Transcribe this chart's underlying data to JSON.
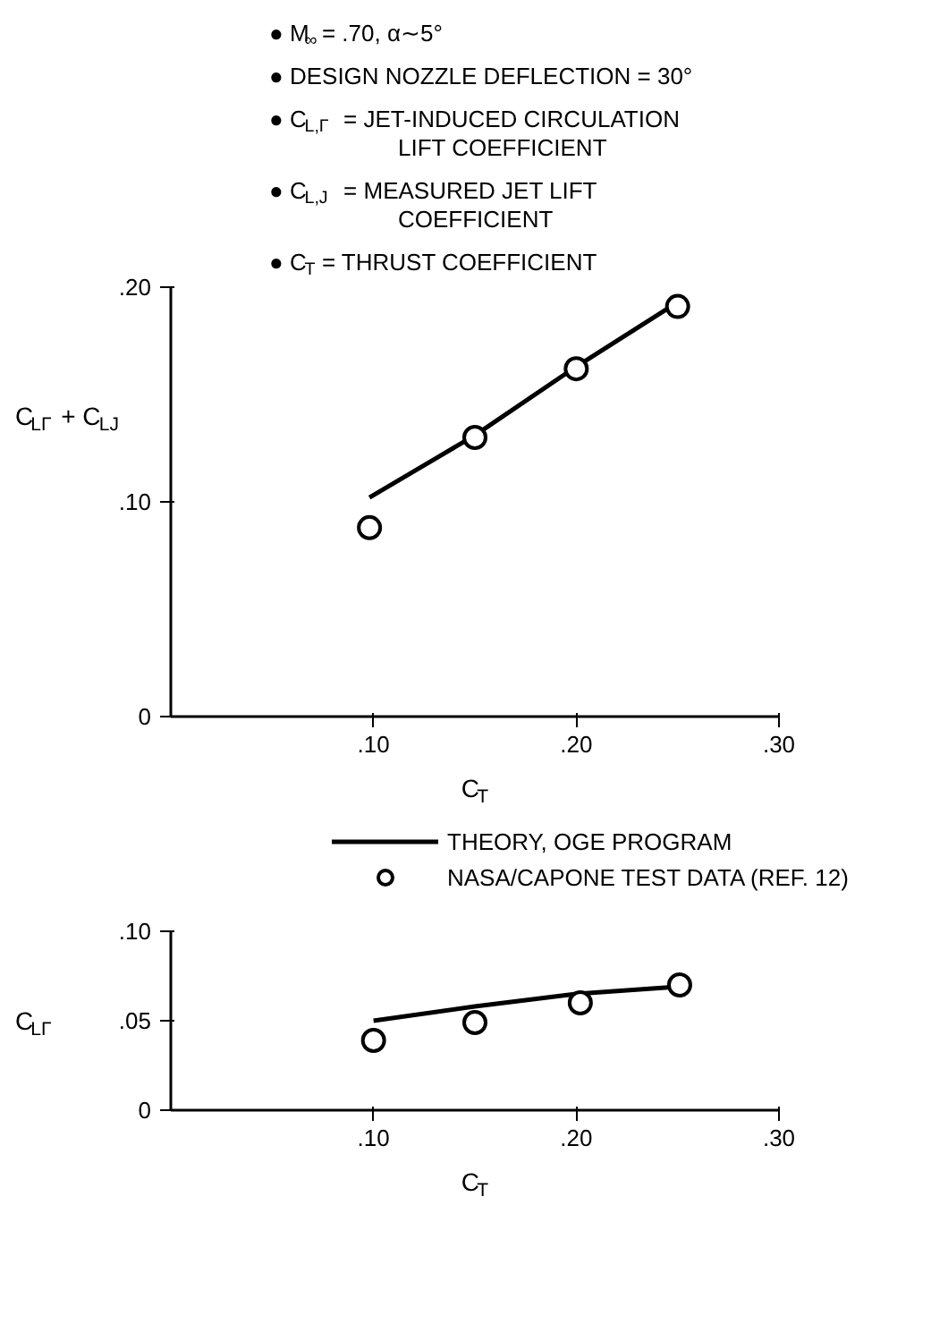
{
  "chart_data": [
    {
      "type": "line",
      "annotations": [
        "● M$_{∞}$ = .70, α∼5°",
        "● DESIGN NOZZLE DEFLECTION = 30°",
        "● C$_{L,Γ}$ = JET-INDUCED CIRCULATION LIFT COEFFICIENT",
        "● C$_{L,J}$ = MEASURED JET LIFT COEFFICIENT",
        "● C$_{T}$ = THRUST COEFFICIENT"
      ],
      "xlabel": "C$_{T}$",
      "ylabel": "C$_{LΓ}$ + C$_{LJ}$",
      "xlim": [
        0,
        0.3
      ],
      "ylim": [
        0,
        0.2
      ],
      "xticks": [
        {
          "value": 0.1,
          "label": ".10"
        },
        {
          "value": 0.2,
          "label": ".20"
        },
        {
          "value": 0.3,
          "label": ".30"
        }
      ],
      "yticks": [
        0,
        {
          "value": 0.1,
          "label": ".10"
        },
        {
          "value": 0.2,
          "label": ".20"
        }
      ],
      "grid": false,
      "legend": false,
      "line_style": "solid",
      "series": [
        {
          "type": "line",
          "color": "#000000",
          "marker": "none",
          "x": [
            0.098,
            0.15,
            0.2,
            0.25
          ],
          "values": [
            0.102,
            0.131,
            0.163,
            0.193
          ]
        },
        {
          "type": "scatter",
          "color": "#000000",
          "marker": "circle",
          "x": [
            0.098,
            0.15,
            0.2,
            0.25
          ],
          "values": [
            0.088,
            0.13,
            0.162,
            0.191
          ]
        }
      ]
    },
    {
      "type": "line",
      "xlabel": "C$_{T}$",
      "ylabel": "C$_{LΓ}$",
      "xlim": [
        0,
        0.3
      ],
      "ylim": [
        0,
        0.1
      ],
      "xticks": [
        {
          "value": 0.1,
          "label": ".10"
        },
        {
          "value": 0.2,
          "label": ".20"
        },
        {
          "value": 0.3,
          "label": ".30"
        }
      ],
      "yticks": [
        0,
        {
          "value": 0.05,
          "label": ".05"
        },
        {
          "value": 0.1,
          "label": ".10"
        }
      ],
      "grid": false,
      "legend": "top",
      "line_style": "solid",
      "series": [
        {
          "type": "line",
          "name": "THEORY, OGE PROGRAM",
          "color": "#000000",
          "marker": "none",
          "x": [
            0.1,
            0.15,
            0.2,
            0.25
          ],
          "values": [
            0.05,
            0.058,
            0.065,
            0.069
          ]
        },
        {
          "type": "scatter",
          "name": "NASA/CAPONE TEST DATA (REF. 12)",
          "color": "#000000",
          "marker": "circle",
          "x": [
            0.1,
            0.15,
            0.202,
            0.251
          ],
          "values": [
            0.039,
            0.049,
            0.06,
            0.07
          ]
        }
      ]
    }
  ]
}
